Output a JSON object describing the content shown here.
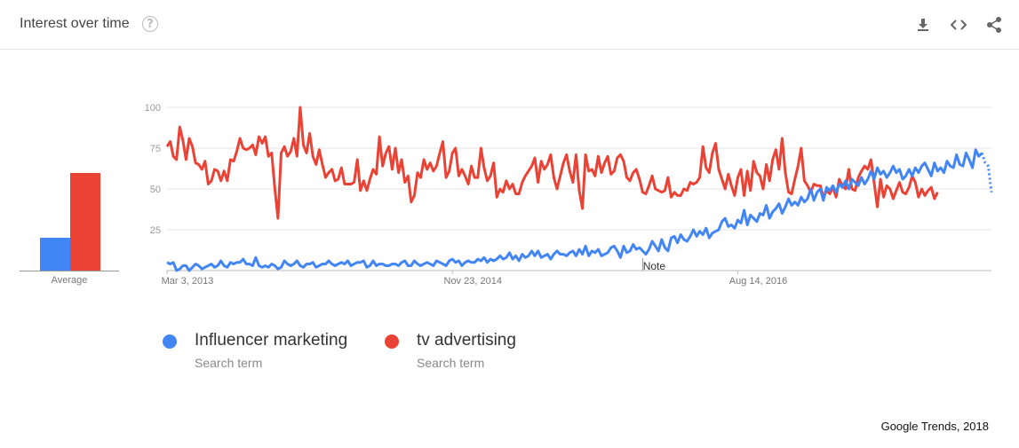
{
  "header": {
    "title": "Interest over time",
    "help_icon": "help-circle-icon",
    "tools": [
      "download-icon",
      "embed-code-icon",
      "share-icon"
    ]
  },
  "average": {
    "label": "Average",
    "values": [
      20,
      60
    ],
    "colors": [
      "#4285f4",
      "#ea4335"
    ]
  },
  "legend": [
    {
      "name": "Influencer marketing",
      "sub": "Search term",
      "color": "#4285f4"
    },
    {
      "name": "tv advertising",
      "sub": "Search term",
      "color": "#ea4335"
    }
  ],
  "source": "Google Trends, 2018",
  "chart_data": {
    "type": "line",
    "title": "Interest over time",
    "xlabel": "",
    "ylabel": "",
    "ylim": [
      0,
      100
    ],
    "y_ticks": [
      25,
      50,
      75,
      100
    ],
    "x_tick_labels": [
      "Mar 3, 2013",
      "Nov 23, 2014",
      "Aug 14, 2016"
    ],
    "x_tick_indices": [
      0,
      90,
      180
    ],
    "grid": true,
    "legend_position": "bottom",
    "annotation": {
      "text": "Note",
      "index": 150
    },
    "series": [
      {
        "name": "Influencer marketing",
        "color": "#4285f4",
        "values": [
          5,
          4,
          5,
          0,
          1,
          3,
          3,
          0,
          2,
          4,
          3,
          1,
          2,
          3,
          4,
          2,
          3,
          6,
          3,
          2,
          5,
          4,
          5,
          5,
          7,
          4,
          4,
          3,
          8,
          3,
          2,
          3,
          2,
          4,
          3,
          1,
          2,
          6,
          4,
          3,
          4,
          6,
          3,
          2,
          4,
          4,
          5,
          2,
          3,
          4,
          4,
          6,
          4,
          3,
          4,
          5,
          4,
          6,
          3,
          4,
          5,
          5,
          6,
          2,
          3,
          6,
          3,
          4,
          4,
          3,
          3,
          4,
          4,
          3,
          5,
          6,
          3,
          3,
          6,
          4,
          3,
          4,
          5,
          4,
          3,
          6,
          5,
          4,
          3,
          6,
          7,
          5,
          6,
          3,
          5,
          6,
          5,
          5,
          7,
          6,
          8,
          5,
          7,
          6,
          7,
          9,
          7,
          8,
          11,
          7,
          9,
          6,
          10,
          8,
          9,
          12,
          9,
          12,
          8,
          9,
          10,
          7,
          10,
          12,
          10,
          10,
          9,
          11,
          12,
          9,
          13,
          10,
          15,
          9,
          12,
          11,
          13,
          9,
          10,
          11,
          14,
          15,
          12,
          8,
          15,
          11,
          12,
          16,
          13,
          14,
          12,
          10,
          13,
          18,
          15,
          12,
          19,
          14,
          12,
          20,
          21,
          17,
          22,
          19,
          18,
          21,
          25,
          21,
          24,
          22,
          26,
          20,
          23,
          24,
          25,
          30,
          32,
          27,
          28,
          26,
          31,
          29,
          37,
          28,
          34,
          32,
          30,
          35,
          34,
          40,
          32,
          36,
          38,
          41,
          35,
          39,
          44,
          40,
          42,
          40,
          45,
          42,
          44,
          50,
          43,
          48,
          50,
          43,
          51,
          49,
          52,
          48,
          53,
          51,
          55,
          50,
          56,
          54,
          52,
          57,
          53,
          56,
          61,
          56,
          63,
          59,
          61,
          57,
          60,
          64,
          60,
          62,
          56,
          58,
          62,
          58,
          63,
          60,
          64,
          66,
          62,
          58,
          66,
          61,
          63,
          60,
          67,
          64,
          63,
          71,
          65,
          64,
          72,
          68,
          63,
          74,
          70,
          72,
          66,
          64,
          48
        ]
      },
      {
        "name": "tv advertising",
        "color": "#ea4335",
        "values": [
          76,
          79,
          70,
          68,
          88,
          80,
          68,
          81,
          76,
          66,
          65,
          62,
          67,
          53,
          55,
          62,
          61,
          55,
          61,
          55,
          68,
          67,
          73,
          81,
          75,
          74,
          75,
          77,
          71,
          82,
          78,
          82,
          70,
          72,
          50,
          32,
          72,
          76,
          70,
          73,
          81,
          70,
          100,
          77,
          72,
          84,
          70,
          65,
          74,
          65,
          57,
          60,
          62,
          55,
          56,
          63,
          53,
          53,
          53,
          54,
          68,
          49,
          55,
          49,
          56,
          62,
          59,
          82,
          64,
          72,
          76,
          62,
          75,
          60,
          68,
          54,
          58,
          42,
          46,
          60,
          57,
          68,
          62,
          66,
          61,
          64,
          72,
          79,
          57,
          61,
          72,
          75,
          58,
          62,
          58,
          53,
          64,
          57,
          57,
          75,
          63,
          55,
          58,
          66,
          45,
          50,
          48,
          55,
          50,
          53,
          47,
          47,
          54,
          58,
          61,
          64,
          69,
          54,
          67,
          62,
          65,
          71,
          57,
          50,
          58,
          66,
          71,
          61,
          54,
          71,
          49,
          38,
          71,
          61,
          62,
          58,
          70,
          60,
          66,
          70,
          59,
          61,
          69,
          71,
          67,
          57,
          55,
          60,
          62,
          56,
          48,
          47,
          52,
          58,
          50,
          49,
          48,
          49,
          57,
          45,
          48,
          46,
          46,
          50,
          49,
          54,
          53,
          54,
          57,
          76,
          63,
          60,
          72,
          78,
          62,
          56,
          50,
          59,
          52,
          46,
          57,
          62,
          46,
          61,
          49,
          67,
          60,
          58,
          50,
          65,
          55,
          68,
          74,
          62,
          81,
          60,
          48,
          47,
          56,
          64,
          75,
          55,
          52,
          48,
          53,
          52,
          52,
          45,
          49,
          47,
          51,
          45,
          56,
          52,
          50,
          62,
          50,
          49,
          57,
          61,
          64,
          62,
          68,
          54,
          39,
          56,
          45,
          52,
          50,
          44,
          49,
          54,
          48,
          47,
          51,
          58,
          54,
          45,
          50,
          46,
          49,
          51,
          44,
          48
        ]
      }
    ]
  }
}
